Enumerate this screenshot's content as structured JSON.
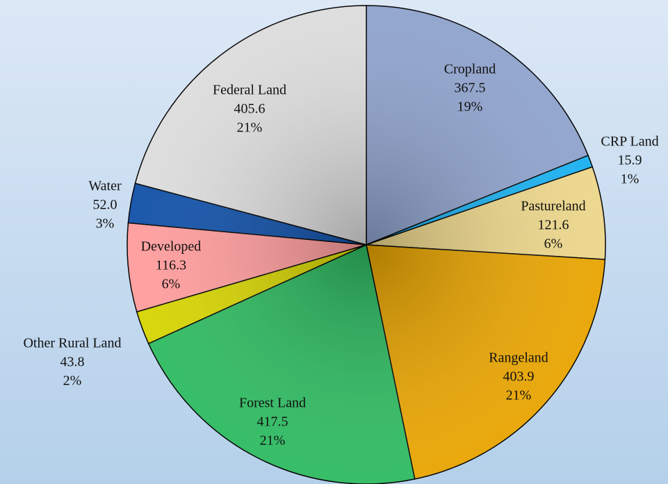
{
  "chart_data": {
    "type": "pie",
    "categories": [
      "Cropland",
      "CRP Land",
      "Pastureland",
      "Rangeland",
      "Forest Land",
      "Other Rural Land",
      "Developed",
      "Water",
      "Federal Land"
    ],
    "values": [
      367.5,
      15.9,
      121.6,
      403.9,
      417.5,
      43.8,
      116.3,
      52.0,
      405.6
    ],
    "value_labels": [
      "367.5",
      "15.9",
      "121.6",
      "403.9",
      "417.5",
      "43.8",
      "116.3",
      "52.0",
      "405.6"
    ],
    "percent_labels": [
      "19%",
      "1%",
      "6%",
      "21%",
      "21%",
      "2%",
      "6%",
      "3%",
      "21%"
    ],
    "colors": [
      "#8ea2cc",
      "#19b0f0",
      "#ecd68a",
      "#e8a400",
      "#2dba60",
      "#d6d400",
      "#ff9c9c",
      "#1050a8",
      "#dcdcdc"
    ]
  }
}
